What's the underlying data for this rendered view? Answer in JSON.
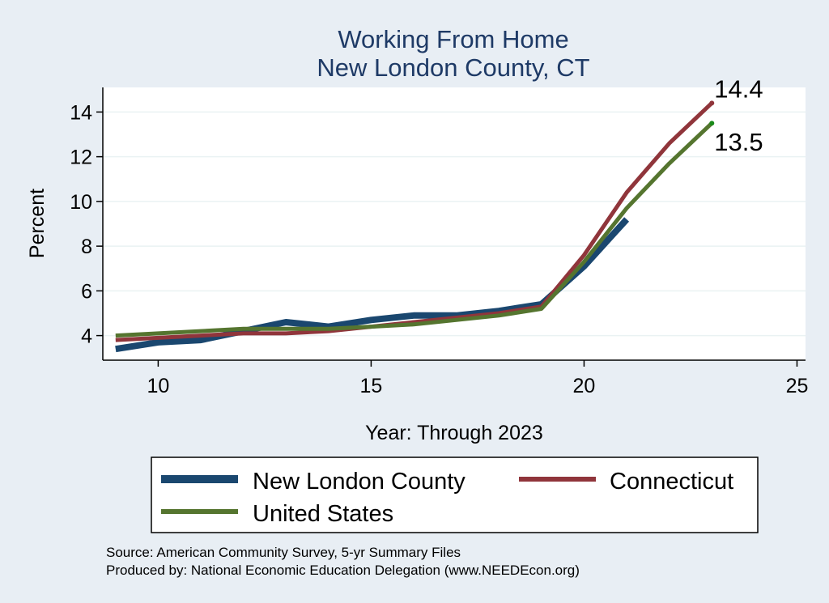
{
  "chart_data": {
    "type": "line",
    "title": [
      "Working From Home",
      "New London County, CT"
    ],
    "xlabel": "Year: Through 2023",
    "ylabel": "Percent",
    "xlim": [
      8.7,
      25.2
    ],
    "ylim": [
      2.9,
      15.1
    ],
    "xticks": [
      10,
      15,
      20,
      25
    ],
    "yticks": [
      4,
      6,
      8,
      10,
      12,
      14
    ],
    "grid": true,
    "legend_position": "bottom",
    "series": [
      {
        "name": "New London County",
        "color": "#1a476f",
        "x": [
          9,
          10,
          11,
          12,
          13,
          14,
          15,
          16,
          17,
          18,
          19,
          20,
          21
        ],
        "values": [
          3.4,
          3.7,
          3.8,
          4.2,
          4.6,
          4.4,
          4.7,
          4.9,
          4.9,
          5.1,
          5.4,
          7.1,
          9.2
        ]
      },
      {
        "name": "Connecticut",
        "color": "#90353b",
        "x": [
          9,
          10,
          11,
          12,
          13,
          14,
          15,
          16,
          17,
          18,
          19,
          20,
          21,
          22,
          23
        ],
        "values": [
          3.8,
          3.9,
          4.0,
          4.1,
          4.1,
          4.2,
          4.4,
          4.6,
          4.8,
          5.0,
          5.3,
          7.6,
          10.4,
          12.6,
          14.4
        ]
      },
      {
        "name": "United States",
        "color": "#55752f",
        "x": [
          9,
          10,
          11,
          12,
          13,
          14,
          15,
          16,
          17,
          18,
          19,
          20,
          21,
          22,
          23
        ],
        "values": [
          4.0,
          4.1,
          4.2,
          4.3,
          4.3,
          4.3,
          4.4,
          4.5,
          4.7,
          4.9,
          5.2,
          7.3,
          9.7,
          11.7,
          13.5
        ]
      }
    ],
    "end_labels": [
      {
        "series": "Connecticut",
        "text": "14.4"
      },
      {
        "series": "United States",
        "text": "13.5"
      }
    ],
    "legend": {
      "items": [
        "New London County",
        "Connecticut",
        "United States"
      ]
    },
    "notes": [
      "Source: American Community Survey, 5-yr Summary Files",
      "Produced by: National Economic Education Delegation (www.NEEDEcon.org)"
    ],
    "colors": {
      "background": "#e8eef4",
      "plot_background": "#ffffff",
      "grid": "#eaf2f3",
      "title": "#1e3a66",
      "endpoint_dot": "#1a8a1a"
    }
  }
}
